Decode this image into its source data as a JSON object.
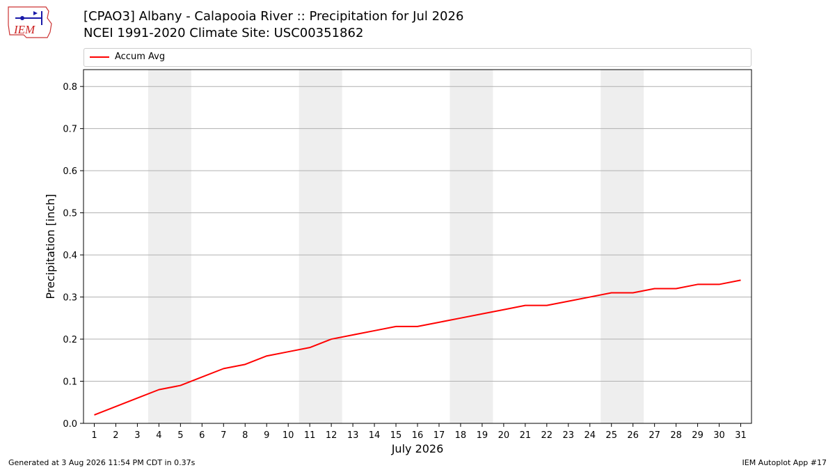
{
  "logo": {
    "text": "IEM"
  },
  "header": {
    "title": "[CPAO3] Albany - Calapooia River :: Precipitation for Jul 2026",
    "subtitle": "NCEI 1991-2020 Climate Site: USC00351862"
  },
  "footer": {
    "generated": "Generated at 3 Aug 2026 11:54 PM CDT in 0.37s",
    "app": "IEM Autoplot App #17"
  },
  "chart_data": {
    "type": "line",
    "xlabel": "July 2026",
    "ylabel": "Precipitation [inch]",
    "x": [
      1,
      2,
      3,
      4,
      5,
      6,
      7,
      8,
      9,
      10,
      11,
      12,
      13,
      14,
      15,
      16,
      17,
      18,
      19,
      20,
      21,
      22,
      23,
      24,
      25,
      26,
      27,
      28,
      29,
      30,
      31
    ],
    "xlim": [
      0.5,
      31.5
    ],
    "ylim": [
      0,
      0.84
    ],
    "yticks": [
      0.0,
      0.1,
      0.2,
      0.3,
      0.4,
      0.5,
      0.6,
      0.7,
      0.8
    ],
    "ytick_labels": [
      "0.0",
      "0.1",
      "0.2",
      "0.3",
      "0.4",
      "0.5",
      "0.6",
      "0.7",
      "0.8"
    ],
    "grid": "horizontal",
    "legend_position": "top, above plot",
    "weekend_shading": [
      [
        4,
        5
      ],
      [
        11,
        12
      ],
      [
        18,
        19
      ],
      [
        25,
        26
      ]
    ],
    "series": [
      {
        "name": "Accum Avg",
        "color": "#ff0000",
        "values": [
          0.02,
          0.04,
          0.06,
          0.08,
          0.09,
          0.11,
          0.13,
          0.14,
          0.16,
          0.17,
          0.18,
          0.2,
          0.21,
          0.22,
          0.23,
          0.23,
          0.24,
          0.25,
          0.26,
          0.27,
          0.28,
          0.28,
          0.29,
          0.3,
          0.31,
          0.31,
          0.32,
          0.32,
          0.33,
          0.33,
          0.34
        ]
      }
    ],
    "colors": {
      "shade": "#eeeeee",
      "grid": "#b0b0b0"
    }
  }
}
